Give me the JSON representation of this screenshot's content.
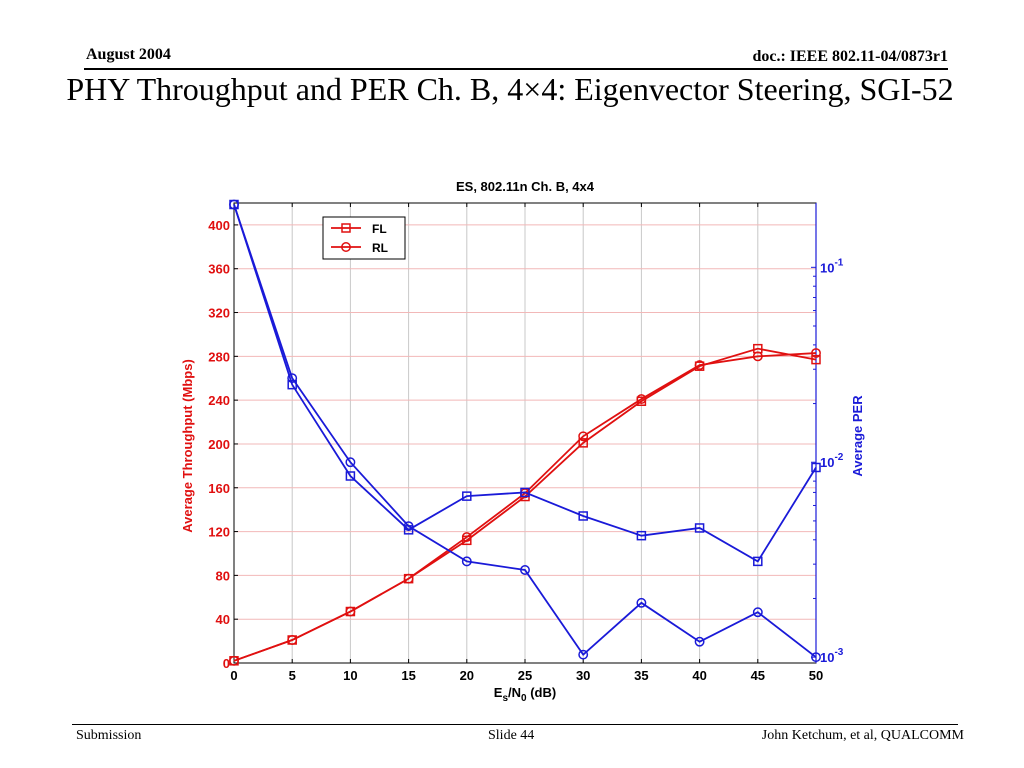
{
  "header": {
    "date": "August 2004",
    "doc_id": "doc.: IEEE 802.11-04/0873r1"
  },
  "slide_title": "PHY Throughput and PER Ch. B, 4×4: Eigenvector Steering, SGI-52",
  "footer": {
    "left": "Submission",
    "center": "Slide 44",
    "right": "John Ketchum, et al, QUALCOMM"
  },
  "colors": {
    "throughput": "#e01010",
    "per": "#1a1ad8"
  },
  "chart_data": {
    "type": "line",
    "title": "ES, 802.11n Ch. B, 4x4",
    "xlabel_main": "E",
    "xlabel_sub1": "s",
    "xlabel_mid": "/N",
    "xlabel_sub2": "0",
    "xlabel_unit": " (dB)",
    "ylabel_left": "Average Throughput (Mbps)",
    "ylabel_right": "Average PER",
    "x_ticks": [
      "0",
      "5",
      "10",
      "15",
      "20",
      "25",
      "30",
      "35",
      "40",
      "45",
      "50"
    ],
    "y_left_ticks": [
      "0",
      "40",
      "80",
      "120",
      "160",
      "200",
      "240",
      "280",
      "320",
      "360",
      "400"
    ],
    "y_right_ticks": [
      {
        "base": "10",
        "exp": "-1",
        "value": 0.1
      },
      {
        "base": "10",
        "exp": "-2",
        "value": 0.01
      },
      {
        "base": "10",
        "exp": "-3",
        "value": 0.001
      }
    ],
    "xlim": [
      0,
      50
    ],
    "ylim_left": [
      0,
      420
    ],
    "ylim_right_log10": [
      -3.03,
      -0.67
    ],
    "grid": true,
    "legend_position": "top-left",
    "x": [
      0,
      5,
      10,
      15,
      20,
      25,
      30,
      35,
      40,
      45,
      50
    ],
    "series": [
      {
        "name": "FL",
        "axis": "left",
        "marker": "square",
        "values": [
          2,
          21,
          47,
          77,
          112,
          152,
          201,
          239,
          271,
          287,
          277
        ]
      },
      {
        "name": "RL",
        "axis": "left",
        "marker": "circle",
        "values": [
          2,
          21,
          47,
          77,
          115,
          155,
          207,
          241,
          272,
          280,
          283
        ]
      },
      {
        "axis": "right",
        "marker": "square",
        "values": [
          0.21,
          0.025,
          0.0085,
          0.0045,
          0.0067,
          0.007,
          0.0053,
          0.0042,
          0.0046,
          0.0031,
          0.0094
        ]
      },
      {
        "axis": "right",
        "marker": "circle",
        "values": [
          0.21,
          0.027,
          0.01,
          0.0047,
          0.0031,
          0.0028,
          0.00103,
          0.0019,
          0.0012,
          0.0017,
          0.001
        ]
      }
    ]
  }
}
